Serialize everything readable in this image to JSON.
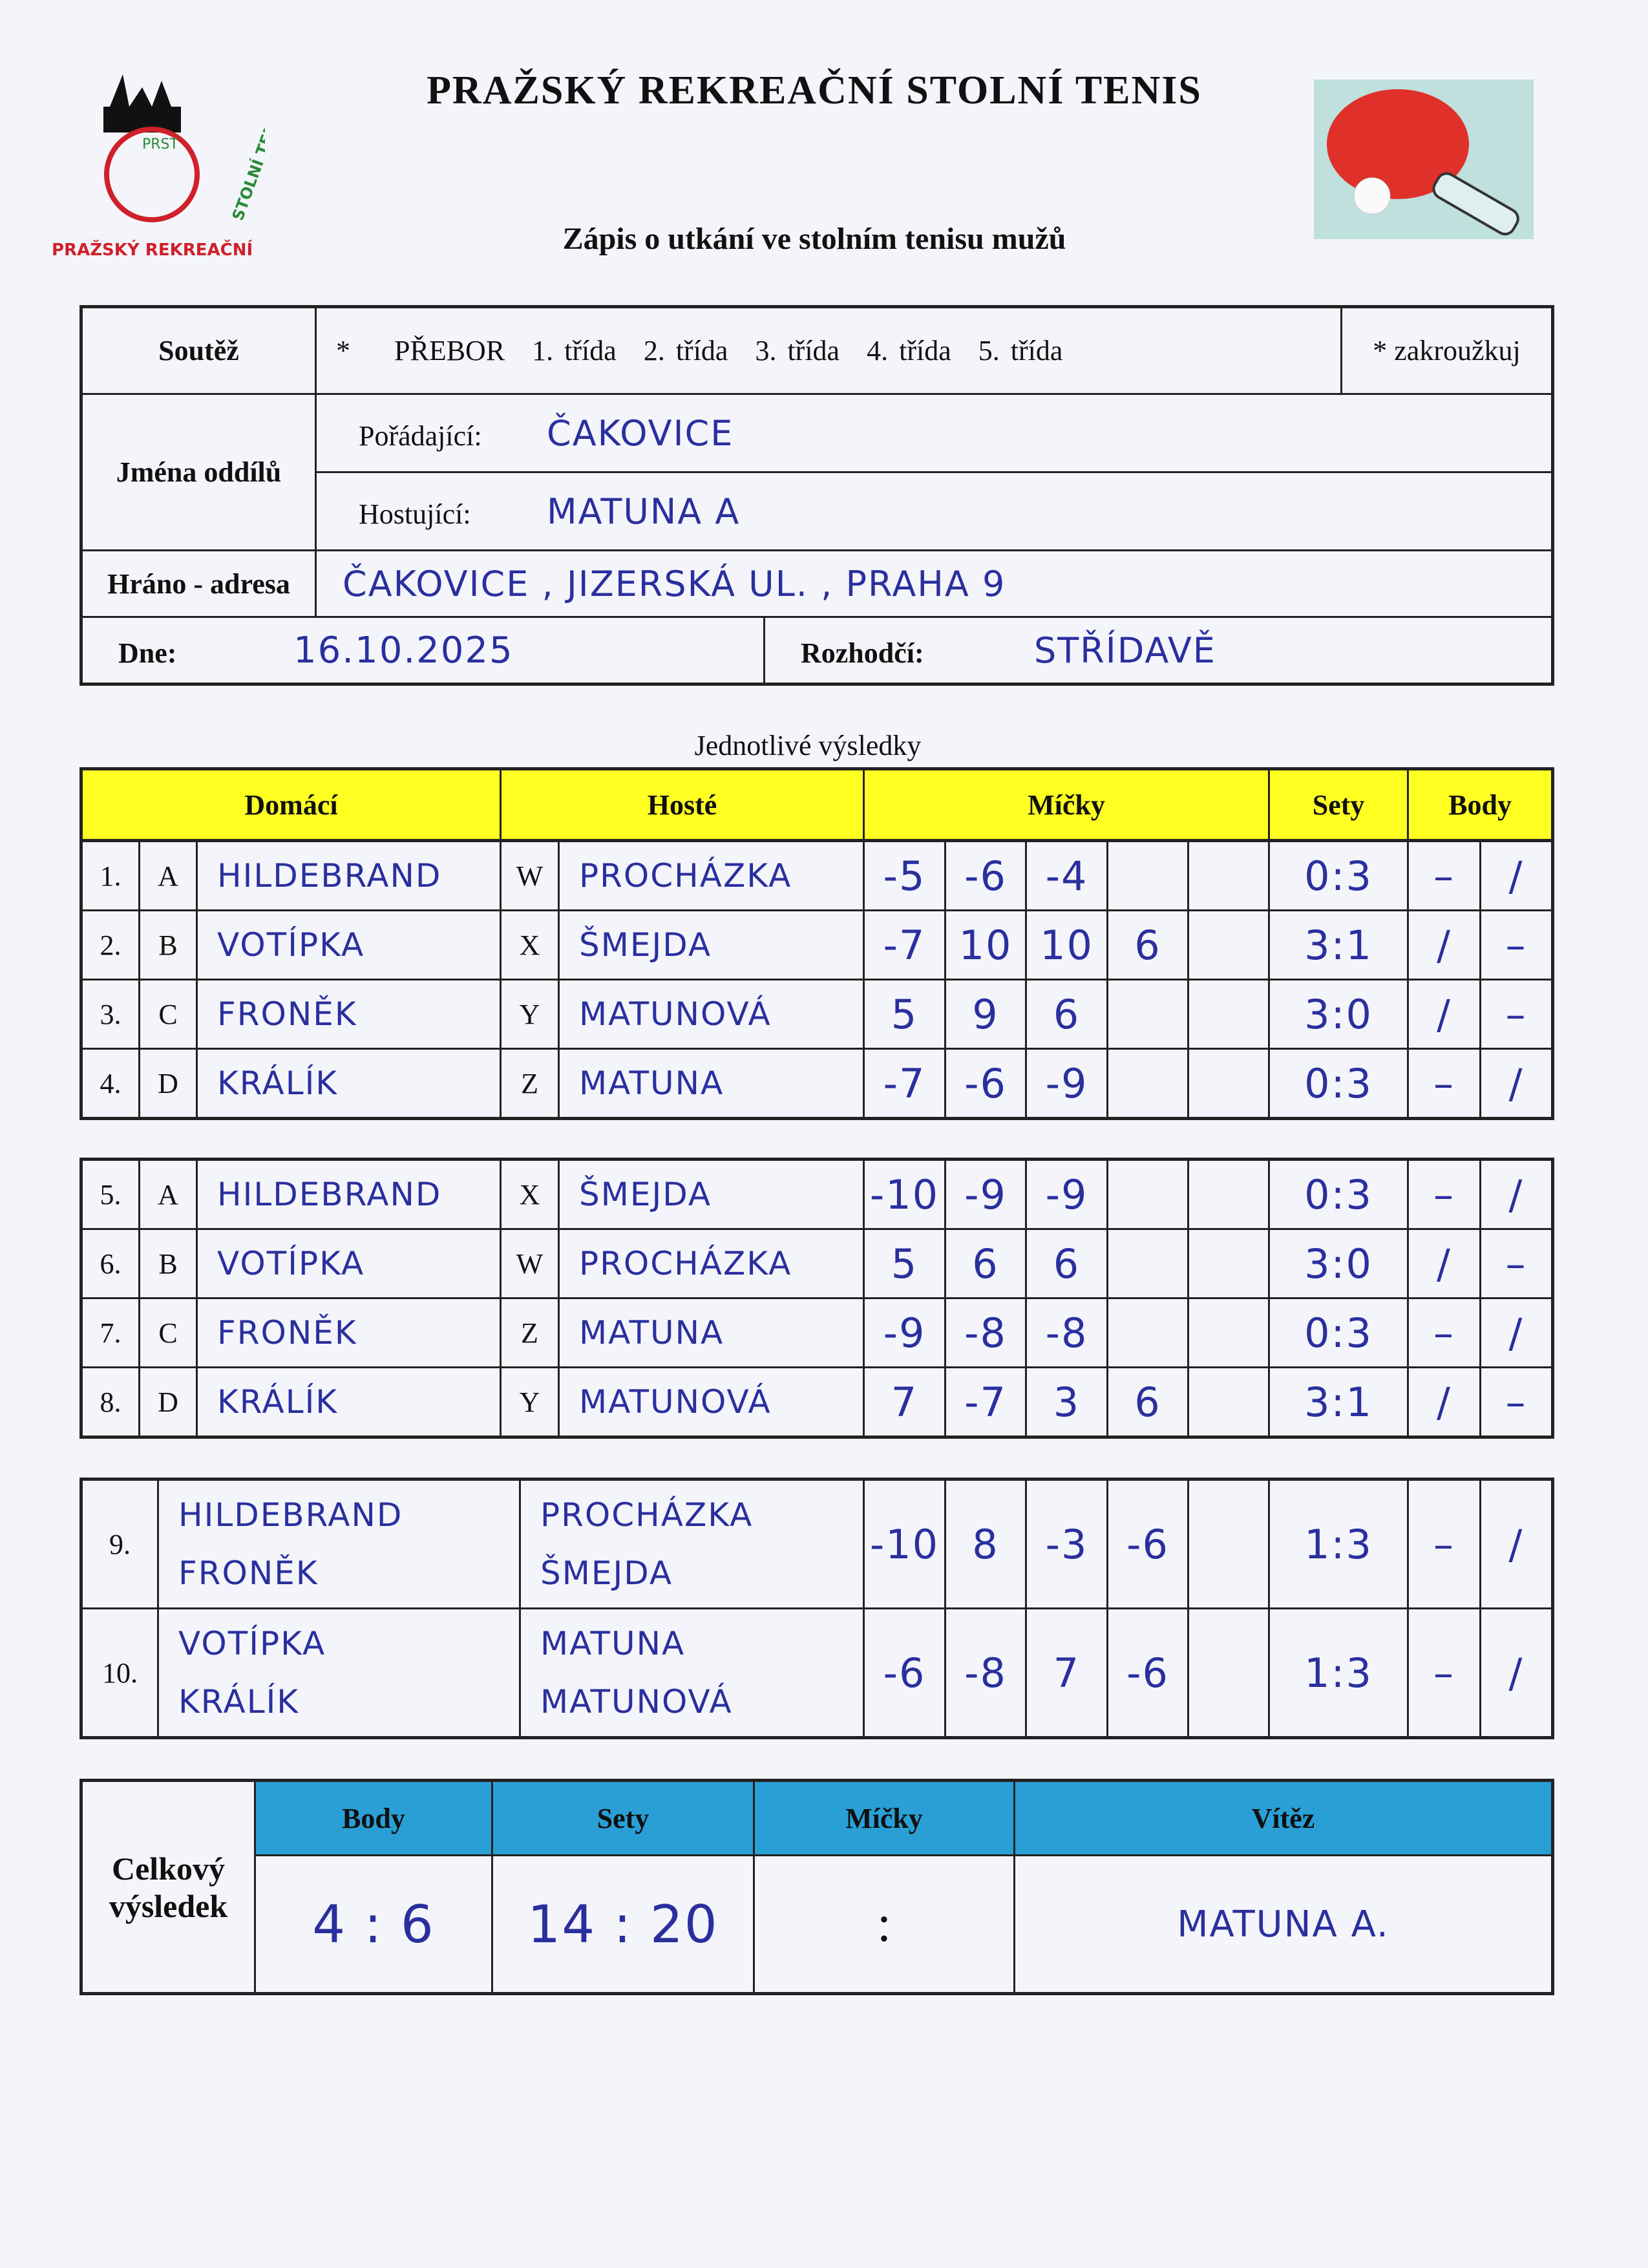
{
  "header": {
    "title": "PRAŽSKÝ REKREAČNÍ STOLNÍ TENIS",
    "subtitle": "Zápis o utkání ve stolním tenisu mužů",
    "logo_text": "PRAŽSKÝ REKREAČNÍ STOLNÍ TENIS",
    "logo_abbrev": "PRST"
  },
  "form": {
    "soutez_label": "Soutěž",
    "soutez_star": "*",
    "soutez_options": [
      "PŘEBOR",
      "1. třída",
      "2. třída",
      "3. třída",
      "4. třída",
      "5. třída"
    ],
    "soutez_note": "* zakroužkuj",
    "jmena_label": "Jména oddílů",
    "poradajici_label": "Pořádající:",
    "poradajici_value": "ČAKOVICE",
    "hostujici_label": "Hostující:",
    "hostujici_value": "MATUNA A",
    "adresa_label": "Hráno - adresa",
    "adresa_value": "ČAKOVICE , JIZERSKÁ UL. , PRAHA 9",
    "dne_label": "Dne:",
    "dne_value": "16.10.2025",
    "rozhodci_label": "Rozhodčí:",
    "rozhodci_value": "STŘÍDAVĚ"
  },
  "results": {
    "section_title": "Jednotlivé výsledky",
    "columns": {
      "domaci": "Domácí",
      "hoste": "Hosté",
      "micky": "Míčky",
      "sety": "Sety",
      "body": "Body"
    },
    "matches": [
      {
        "no": "1.",
        "hl": "A",
        "home": [
          "HILDEBRAND"
        ],
        "gl": "W",
        "guest": [
          "PROCHÁZKA"
        ],
        "balls": [
          "-5",
          "-6",
          "-4",
          "",
          ""
        ],
        "sets": "0:3",
        "ph": "–",
        "pg": "/"
      },
      {
        "no": "2.",
        "hl": "B",
        "home": [
          "VOTÍPKA"
        ],
        "gl": "X",
        "guest": [
          "ŠMEJDA"
        ],
        "balls": [
          "-7",
          "10",
          "10",
          "6",
          ""
        ],
        "sets": "3:1",
        "ph": "/",
        "pg": "–"
      },
      {
        "no": "3.",
        "hl": "C",
        "home": [
          "FRONĚK"
        ],
        "gl": "Y",
        "guest": [
          "MATUNOVÁ"
        ],
        "balls": [
          "5",
          "9",
          "6",
          "",
          ""
        ],
        "sets": "3:0",
        "ph": "/",
        "pg": "–"
      },
      {
        "no": "4.",
        "hl": "D",
        "home": [
          "KRÁLÍK"
        ],
        "gl": "Z",
        "guest": [
          "MATUNA"
        ],
        "balls": [
          "-7",
          "-6",
          "-9",
          "",
          ""
        ],
        "sets": "0:3",
        "ph": "–",
        "pg": "/"
      },
      {
        "no": "5.",
        "hl": "A",
        "home": [
          "HILDEBRAND"
        ],
        "gl": "X",
        "guest": [
          "ŠMEJDA"
        ],
        "balls": [
          "-10",
          "-9",
          "-9",
          "",
          ""
        ],
        "sets": "0:3",
        "ph": "–",
        "pg": "/"
      },
      {
        "no": "6.",
        "hl": "B",
        "home": [
          "VOTÍPKA"
        ],
        "gl": "W",
        "guest": [
          "PROCHÁZKA"
        ],
        "balls": [
          "5",
          "6",
          "6",
          "",
          ""
        ],
        "sets": "3:0",
        "ph": "/",
        "pg": "–"
      },
      {
        "no": "7.",
        "hl": "C",
        "home": [
          "FRONĚK"
        ],
        "gl": "Z",
        "guest": [
          "MATUNA"
        ],
        "balls": [
          "-9",
          "-8",
          "-8",
          "",
          ""
        ],
        "sets": "0:3",
        "ph": "–",
        "pg": "/"
      },
      {
        "no": "8.",
        "hl": "D",
        "home": [
          "KRÁLÍK"
        ],
        "gl": "Y",
        "guest": [
          "MATUNOVÁ"
        ],
        "balls": [
          "7",
          "-7",
          "3",
          "6",
          ""
        ],
        "sets": "3:1",
        "ph": "/",
        "pg": "–"
      },
      {
        "no": "9.",
        "home": [
          "HILDEBRAND",
          "FRONĚK"
        ],
        "guest": [
          "PROCHÁZKA",
          "ŠMEJDA"
        ],
        "balls": [
          "-10",
          "8",
          "-3",
          "-6",
          ""
        ],
        "sets": "1:3",
        "ph": "–",
        "pg": "/"
      },
      {
        "no": "10.",
        "home": [
          "VOTÍPKA",
          "KRÁLÍK"
        ],
        "guest": [
          "MATUNA",
          "MATUNOVÁ"
        ],
        "balls": [
          "-6",
          "-8",
          "7",
          "-6",
          ""
        ],
        "sets": "1:3",
        "ph": "–",
        "pg": "/"
      }
    ]
  },
  "summary": {
    "label": "Celkový výsledek",
    "columns": {
      "body": "Body",
      "sety": "Sety",
      "micky": "Míčky",
      "vitez": "Vítěz"
    },
    "body": "4 : 6",
    "sety": "14 : 20",
    "micky": ":",
    "vitez": "MATUNA A."
  },
  "colors": {
    "header_yellow": "#ffff22",
    "summary_blue": "#2a9fd6",
    "ink": "#2a2f9e",
    "logo_red": "#d0202a",
    "logo_green": "#2a8a3a"
  }
}
